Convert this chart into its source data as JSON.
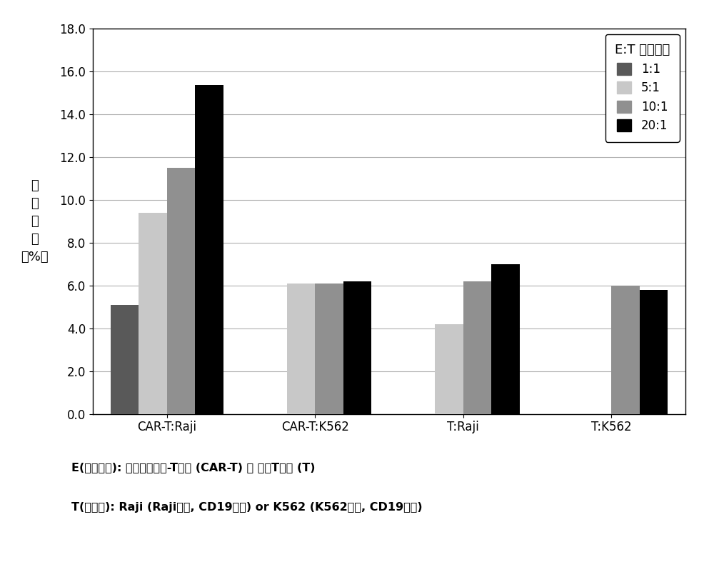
{
  "categories": [
    "CAR-T:Raji",
    "CAR-T:K562",
    "T:Raji",
    "T:K562"
  ],
  "series": {
    "1:1": [
      5.1,
      0.0,
      0.0,
      0.0
    ],
    "5:1": [
      9.4,
      6.1,
      4.2,
      0.0
    ],
    "10:1": [
      11.5,
      6.1,
      6.2,
      6.0
    ],
    "20:1": [
      15.35,
      6.2,
      7.0,
      5.8
    ]
  },
  "colors": {
    "1:1": "#595959",
    "5:1": "#c8c8c8",
    "10:1": "#909090",
    "20:1": "#000000"
  },
  "legend_title": "E:T 混合比例",
  "ylabel_chars": [
    "细",
    "胞",
    "毒",
    "性",
    "(%）"
  ],
  "ylim": [
    0.0,
    18.0
  ],
  "yticks": [
    0.0,
    2.0,
    4.0,
    6.0,
    8.0,
    10.0,
    12.0,
    14.0,
    16.0,
    18.0
  ],
  "bar_width": 0.19,
  "footnote_line1": "E(效应细胞): 嵌合抗原受体-T细胞 (CAR-T) 或 正常T细胞 (T)",
  "footnote_line2": "T(靶细胞): Raji (Raji细胞, CD19阳性) or K562 (K562细胞, CD19阴性)",
  "background_color": "#ffffff",
  "plot_bg_color": "#ffffff",
  "grid_color": "#b0b0b0"
}
